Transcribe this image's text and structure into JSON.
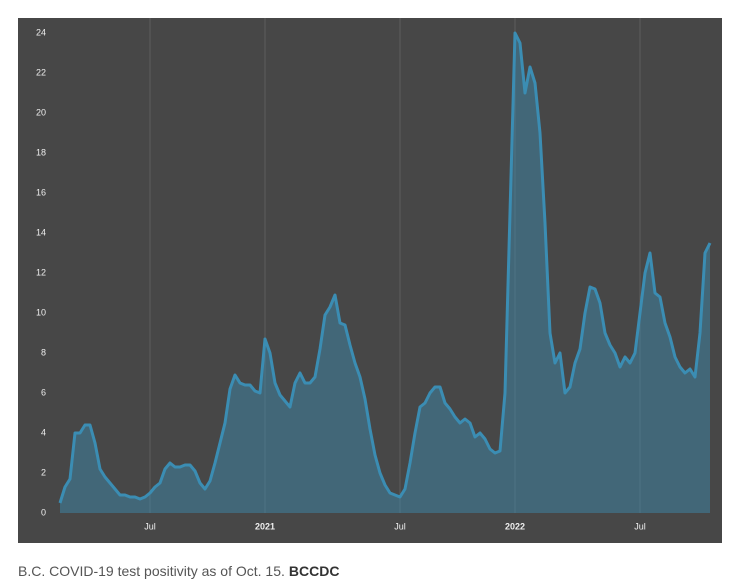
{
  "chart_data": {
    "type": "area",
    "categories": [
      null,
      null,
      null,
      null,
      null,
      null,
      null,
      null,
      null,
      null,
      null,
      null,
      null,
      null,
      null,
      null,
      null,
      null,
      "Jul",
      null,
      null,
      null,
      null,
      null,
      null,
      null,
      null,
      null,
      null,
      null,
      null,
      null,
      null,
      null,
      null,
      null,
      null,
      null,
      null,
      null,
      null,
      "2021",
      null,
      null,
      null,
      null,
      null,
      null,
      null,
      null,
      null,
      null,
      null,
      null,
      null,
      null,
      null,
      null,
      null,
      null,
      null,
      null,
      null,
      null,
      null,
      null,
      null,
      null,
      "Jul",
      null,
      null,
      null,
      null,
      null,
      null,
      null,
      null,
      null,
      null,
      null,
      null,
      null,
      null,
      null,
      null,
      null,
      null,
      null,
      null,
      null,
      null,
      "2022",
      null,
      null,
      null,
      null,
      null,
      null,
      null,
      null,
      null,
      null,
      null,
      null,
      null,
      null,
      null,
      null,
      null,
      null,
      null,
      null,
      null,
      null,
      null,
      null,
      "Jul",
      null,
      null,
      null,
      null,
      null,
      null,
      null,
      null,
      null,
      null,
      null,
      null,
      null,
      null
    ],
    "values": [
      0.5,
      1.3,
      1.7,
      4.0,
      4.0,
      4.4,
      4.4,
      3.5,
      2.2,
      1.8,
      1.5,
      1.2,
      0.9,
      0.9,
      0.8,
      0.8,
      0.7,
      0.8,
      1.0,
      1.3,
      1.5,
      2.2,
      2.5,
      2.3,
      2.3,
      2.4,
      2.4,
      2.1,
      1.5,
      1.2,
      1.6,
      2.5,
      3.5,
      4.5,
      6.2,
      6.9,
      6.5,
      6.4,
      6.4,
      6.1,
      6.0,
      8.7,
      8.0,
      6.5,
      5.9,
      5.6,
      5.3,
      6.5,
      7.0,
      6.5,
      6.5,
      6.8,
      8.2,
      9.9,
      10.3,
      10.9,
      9.5,
      9.4,
      8.4,
      7.5,
      6.8,
      5.7,
      4.2,
      2.9,
      2.0,
      1.4,
      1.0,
      0.9,
      0.8,
      1.2,
      2.5,
      4.0,
      5.3,
      5.5,
      6.0,
      6.3,
      6.3,
      5.5,
      5.2,
      4.8,
      4.5,
      4.7,
      4.5,
      3.8,
      4.0,
      3.7,
      3.2,
      3.0,
      3.1,
      6.0,
      15,
      24.0,
      23.5,
      21.0,
      22.3,
      21.5,
      19.0,
      14.5,
      9.0,
      7.5,
      8.0,
      6.0,
      6.3,
      7.5,
      8.2,
      10.0,
      11.3,
      11.2,
      10.5,
      9.0,
      8.4,
      8.0,
      7.3,
      7.8,
      7.5,
      8.0,
      10.0,
      12.0,
      13.0,
      11.0,
      10.8,
      9.5,
      8.8,
      7.8,
      7.3,
      7.0,
      7.2,
      6.8,
      9.0,
      13.0,
      13.5
    ],
    "color": "#3b8db3",
    "ylim": [
      0,
      24
    ],
    "yticks": [
      0,
      2,
      4,
      6,
      8,
      10,
      12,
      14,
      16,
      18,
      20,
      22,
      24
    ],
    "grid": true
  },
  "caption": {
    "text": "B.C. COVID-19 test positivity as of Oct. 15.",
    "source": "BCCDC"
  }
}
